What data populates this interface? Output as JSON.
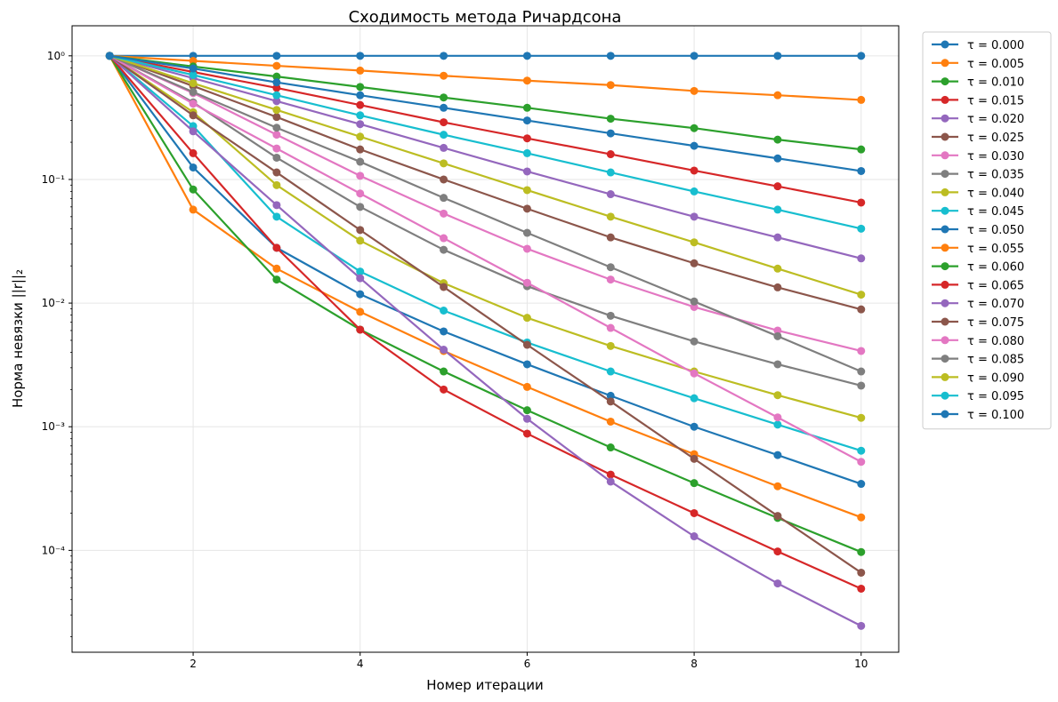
{
  "chart_data": {
    "type": "line",
    "title": "Сходимость метода Ричардсона",
    "xlabel": "Номер итерации",
    "ylabel": "Норма невязки ||r||₂",
    "yscale": "log",
    "grid": true,
    "legend_position": "outside-right",
    "x": [
      1,
      2,
      3,
      4,
      5,
      6,
      7,
      8,
      9,
      10
    ],
    "xlim": [
      0.55,
      10.45
    ],
    "ylim": [
      1.5e-05,
      1.75
    ],
    "x_ticks": [
      2,
      4,
      6,
      8,
      10
    ],
    "y_ticks": [
      {
        "value": 1,
        "label": "10⁰"
      },
      {
        "value": 0.1,
        "label": "10⁻¹"
      },
      {
        "value": 0.01,
        "label": "10⁻²"
      },
      {
        "value": 0.001,
        "label": "10⁻³"
      },
      {
        "value": 0.0001,
        "label": "10⁻⁴"
      }
    ],
    "series": [
      {
        "name": "τ = 0.000",
        "color": "#1f77b4",
        "values": [
          1,
          1,
          1,
          1,
          1,
          1,
          1,
          1,
          1,
          1
        ]
      },
      {
        "name": "τ = 0.005",
        "color": "#ff7f0e",
        "values": [
          1,
          0.91,
          0.83,
          0.76,
          0.69,
          0.63,
          0.58,
          0.52,
          0.48,
          0.44
        ]
      },
      {
        "name": "τ = 0.010",
        "color": "#2ca02c",
        "values": [
          1,
          0.82,
          0.68,
          0.56,
          0.46,
          0.38,
          0.31,
          0.26,
          0.21,
          0.175
        ]
      },
      {
        "name": "τ = 0.015",
        "color": "#d62728",
        "values": [
          1,
          0.74,
          0.55,
          0.4,
          0.29,
          0.215,
          0.16,
          0.118,
          0.088,
          0.065
        ]
      },
      {
        "name": "τ = 0.020",
        "color": "#9467bd",
        "values": [
          1,
          0.66,
          0.43,
          0.28,
          0.18,
          0.116,
          0.076,
          0.05,
          0.034,
          0.023
        ]
      },
      {
        "name": "τ = 0.025",
        "color": "#8c564b",
        "values": [
          1,
          0.57,
          0.32,
          0.175,
          0.1,
          0.058,
          0.034,
          0.021,
          0.0134,
          0.0089
        ]
      },
      {
        "name": "τ = 0.030",
        "color": "#e377c2",
        "values": [
          1,
          0.5,
          0.23,
          0.107,
          0.053,
          0.0275,
          0.0155,
          0.0093,
          0.006,
          0.0041
        ]
      },
      {
        "name": "τ = 0.035",
        "color": "#7f7f7f",
        "values": [
          1,
          0.42,
          0.15,
          0.06,
          0.027,
          0.0137,
          0.0079,
          0.0049,
          0.0032,
          0.00215
        ]
      },
      {
        "name": "τ = 0.040",
        "color": "#bcbd22",
        "values": [
          1,
          0.35,
          0.09,
          0.032,
          0.0145,
          0.0076,
          0.0045,
          0.0028,
          0.0018,
          0.00118
        ]
      },
      {
        "name": "τ = 0.045",
        "color": "#17becf",
        "values": [
          1,
          0.27,
          0.05,
          0.018,
          0.0087,
          0.0048,
          0.0028,
          0.0017,
          0.00104,
          0.00064
        ]
      },
      {
        "name": "τ = 0.050",
        "color": "#1f77b4",
        "values": [
          1,
          0.125,
          0.028,
          0.0118,
          0.0059,
          0.0032,
          0.00178,
          0.001,
          0.00059,
          0.000345
        ]
      },
      {
        "name": "τ = 0.055",
        "color": "#ff7f0e",
        "values": [
          1,
          0.057,
          0.019,
          0.0085,
          0.0041,
          0.0021,
          0.0011,
          0.0006,
          0.00033,
          0.000185
        ]
      },
      {
        "name": "τ = 0.060",
        "color": "#2ca02c",
        "values": [
          1,
          0.083,
          0.0155,
          0.0061,
          0.0028,
          0.00136,
          0.00068,
          0.00035,
          0.000183,
          9.7e-05
        ]
      },
      {
        "name": "τ = 0.065",
        "color": "#d62728",
        "values": [
          1,
          0.163,
          0.028,
          0.0061,
          0.002,
          0.00088,
          0.00041,
          0.0002,
          9.8e-05,
          4.9e-05
        ]
      },
      {
        "name": "τ = 0.070",
        "color": "#9467bd",
        "values": [
          1,
          0.245,
          0.062,
          0.0159,
          0.0042,
          0.00116,
          0.00036,
          0.00013,
          5.4e-05,
          2.45e-05
        ]
      },
      {
        "name": "τ = 0.075",
        "color": "#8c564b",
        "values": [
          1,
          0.33,
          0.114,
          0.039,
          0.0135,
          0.0046,
          0.0016,
          0.00055,
          0.00019,
          6.6e-05
        ]
      },
      {
        "name": "τ = 0.080",
        "color": "#e377c2",
        "values": [
          1,
          0.41,
          0.178,
          0.077,
          0.0335,
          0.0146,
          0.0063,
          0.0027,
          0.00119,
          0.00052
        ]
      },
      {
        "name": "τ = 0.085",
        "color": "#7f7f7f",
        "values": [
          1,
          0.51,
          0.262,
          0.139,
          0.071,
          0.037,
          0.0195,
          0.0103,
          0.0054,
          0.0028
        ]
      },
      {
        "name": "τ = 0.090",
        "color": "#bcbd22",
        "values": [
          1,
          0.6,
          0.365,
          0.222,
          0.135,
          0.082,
          0.05,
          0.031,
          0.019,
          0.0117
        ]
      },
      {
        "name": "τ = 0.095",
        "color": "#17becf",
        "values": [
          1,
          0.7,
          0.48,
          0.33,
          0.23,
          0.163,
          0.114,
          0.08,
          0.057,
          0.04
        ]
      },
      {
        "name": "τ = 0.100",
        "color": "#1f77b4",
        "values": [
          1,
          0.79,
          0.61,
          0.48,
          0.38,
          0.3,
          0.236,
          0.187,
          0.148,
          0.117
        ]
      }
    ]
  }
}
